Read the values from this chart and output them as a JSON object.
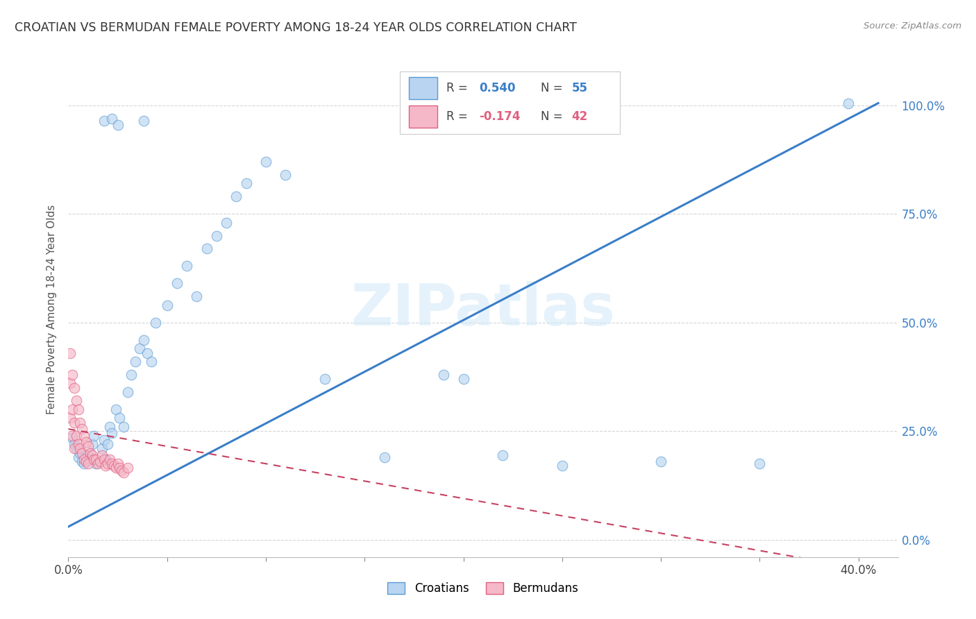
{
  "title": "CROATIAN VS BERMUDAN FEMALE POVERTY AMONG 18-24 YEAR OLDS CORRELATION CHART",
  "source": "Source: ZipAtlas.com",
  "ylabel": "Female Poverty Among 18-24 Year Olds",
  "croatian_color": "#b8d4f0",
  "bermudan_color": "#f5b8c8",
  "croatian_edge_color": "#5b9bd5",
  "bermudan_edge_color": "#e06080",
  "croatian_line_color": "#3a7ec8",
  "bermudan_line_color": "#c84060",
  "legend_R_croatian": "0.540",
  "legend_N_croatian": "55",
  "legend_R_bermudan": "-0.174",
  "legend_N_bermudan": "42",
  "watermark": "ZIPatlas",
  "background_color": "#ffffff",
  "grid_color": "#cccccc",
  "xlim": [
    0.0,
    0.42
  ],
  "ylim": [
    -0.04,
    1.1
  ],
  "ytick_positions": [
    0.0,
    0.25,
    0.5,
    0.75,
    1.0
  ],
  "ytick_labels": [
    "0.0%",
    "25.0%",
    "50.0%",
    "75.0%",
    "100.0%"
  ],
  "xtick_positions": [
    0.0,
    0.05,
    0.1,
    0.15,
    0.2,
    0.25,
    0.3,
    0.35,
    0.4
  ],
  "xtick_labels": [
    "0.0%",
    "",
    "",
    "",
    "",
    "",
    "",
    "",
    "40.0%"
  ],
  "cr_line_x0": 0.0,
  "cr_line_y0": 0.03,
  "cr_line_x1": 0.41,
  "cr_line_y1": 1.005,
  "bm_line_x0": 0.0,
  "bm_line_y0": 0.255,
  "bm_line_x1": 0.05,
  "bm_line_y1": 0.215,
  "croatian_x": [
    0.002,
    0.003,
    0.004,
    0.005,
    0.006,
    0.007,
    0.008,
    0.009,
    0.01,
    0.011,
    0.012,
    0.013,
    0.014,
    0.016,
    0.017,
    0.018,
    0.019,
    0.02,
    0.021,
    0.022,
    0.024,
    0.026,
    0.028,
    0.03,
    0.032,
    0.034,
    0.036,
    0.038,
    0.04,
    0.042,
    0.044,
    0.05,
    0.055,
    0.06,
    0.065,
    0.07,
    0.075,
    0.08,
    0.085,
    0.09,
    0.1,
    0.11,
    0.13,
    0.16,
    0.19,
    0.2,
    0.22,
    0.25,
    0.3,
    0.35,
    0.018,
    0.022,
    0.025,
    0.038,
    0.395
  ],
  "croatian_y": [
    0.235,
    0.22,
    0.21,
    0.19,
    0.2,
    0.18,
    0.175,
    0.19,
    0.195,
    0.185,
    0.22,
    0.24,
    0.175,
    0.18,
    0.21,
    0.23,
    0.185,
    0.22,
    0.26,
    0.245,
    0.3,
    0.28,
    0.26,
    0.34,
    0.38,
    0.41,
    0.44,
    0.46,
    0.43,
    0.41,
    0.5,
    0.54,
    0.59,
    0.63,
    0.56,
    0.67,
    0.7,
    0.73,
    0.79,
    0.82,
    0.87,
    0.84,
    0.37,
    0.19,
    0.38,
    0.37,
    0.195,
    0.17,
    0.18,
    0.175,
    0.965,
    0.97,
    0.955,
    0.965,
    1.005
  ],
  "bermudan_x": [
    0.001,
    0.001,
    0.001,
    0.002,
    0.002,
    0.002,
    0.003,
    0.003,
    0.003,
    0.004,
    0.004,
    0.005,
    0.005,
    0.006,
    0.006,
    0.007,
    0.007,
    0.008,
    0.008,
    0.009,
    0.009,
    0.01,
    0.01,
    0.011,
    0.012,
    0.013,
    0.014,
    0.015,
    0.016,
    0.017,
    0.018,
    0.019,
    0.02,
    0.021,
    0.022,
    0.023,
    0.024,
    0.025,
    0.026,
    0.027,
    0.028,
    0.03
  ],
  "bermudan_y": [
    0.43,
    0.36,
    0.28,
    0.38,
    0.3,
    0.24,
    0.35,
    0.27,
    0.21,
    0.32,
    0.24,
    0.3,
    0.22,
    0.27,
    0.21,
    0.255,
    0.2,
    0.24,
    0.185,
    0.225,
    0.18,
    0.215,
    0.175,
    0.2,
    0.195,
    0.185,
    0.185,
    0.175,
    0.18,
    0.195,
    0.185,
    0.17,
    0.175,
    0.185,
    0.175,
    0.17,
    0.165,
    0.175,
    0.165,
    0.16,
    0.155,
    0.165
  ]
}
